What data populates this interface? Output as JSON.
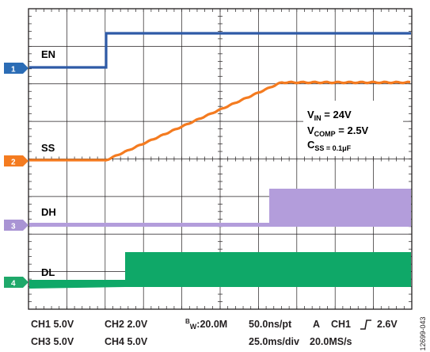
{
  "scope": {
    "channels": [
      {
        "id": "1",
        "name": "EN",
        "color": "#2e5aa6",
        "badge_color": "#2b6cb5"
      },
      {
        "id": "2",
        "name": "SS",
        "color": "#f47b20",
        "badge_color": "#f47b20"
      },
      {
        "id": "3",
        "name": "DH",
        "color": "#b39ddb",
        "badge_color": "#a994d4"
      },
      {
        "id": "4",
        "name": "DL",
        "color": "#0fa868",
        "badge_color": "#1fa86a"
      }
    ],
    "annotation": {
      "vin_main": "V",
      "vin_sub": "IN",
      "vin_value": " = 24V",
      "vcomp_main": "V",
      "vcomp_sub": "COMP",
      "vcomp_value": " = 2.5V",
      "css_main": "C",
      "css_sub": "SS",
      "css_value": " = 0.1μF"
    },
    "grid": {
      "divisions_x": 10,
      "divisions_y": 8
    }
  },
  "footer": {
    "row1": {
      "ch1": "CH1 5.0V",
      "ch2": "CH2  2.0V",
      "bw_prefix": "B",
      "bw_sub": "W",
      "bw_value": ":20.0M",
      "rate": "50.0ns/pt",
      "trigger_mode": "A",
      "trigger_ch": "CH1",
      "trigger_level": "2.6V"
    },
    "row2": {
      "ch3": "CH3 5.0V",
      "ch4": "CH4  5.0V",
      "timebase": "25.0ms/div",
      "sample_rate": "20.0MS/s"
    }
  },
  "figure_id": "12699-043"
}
